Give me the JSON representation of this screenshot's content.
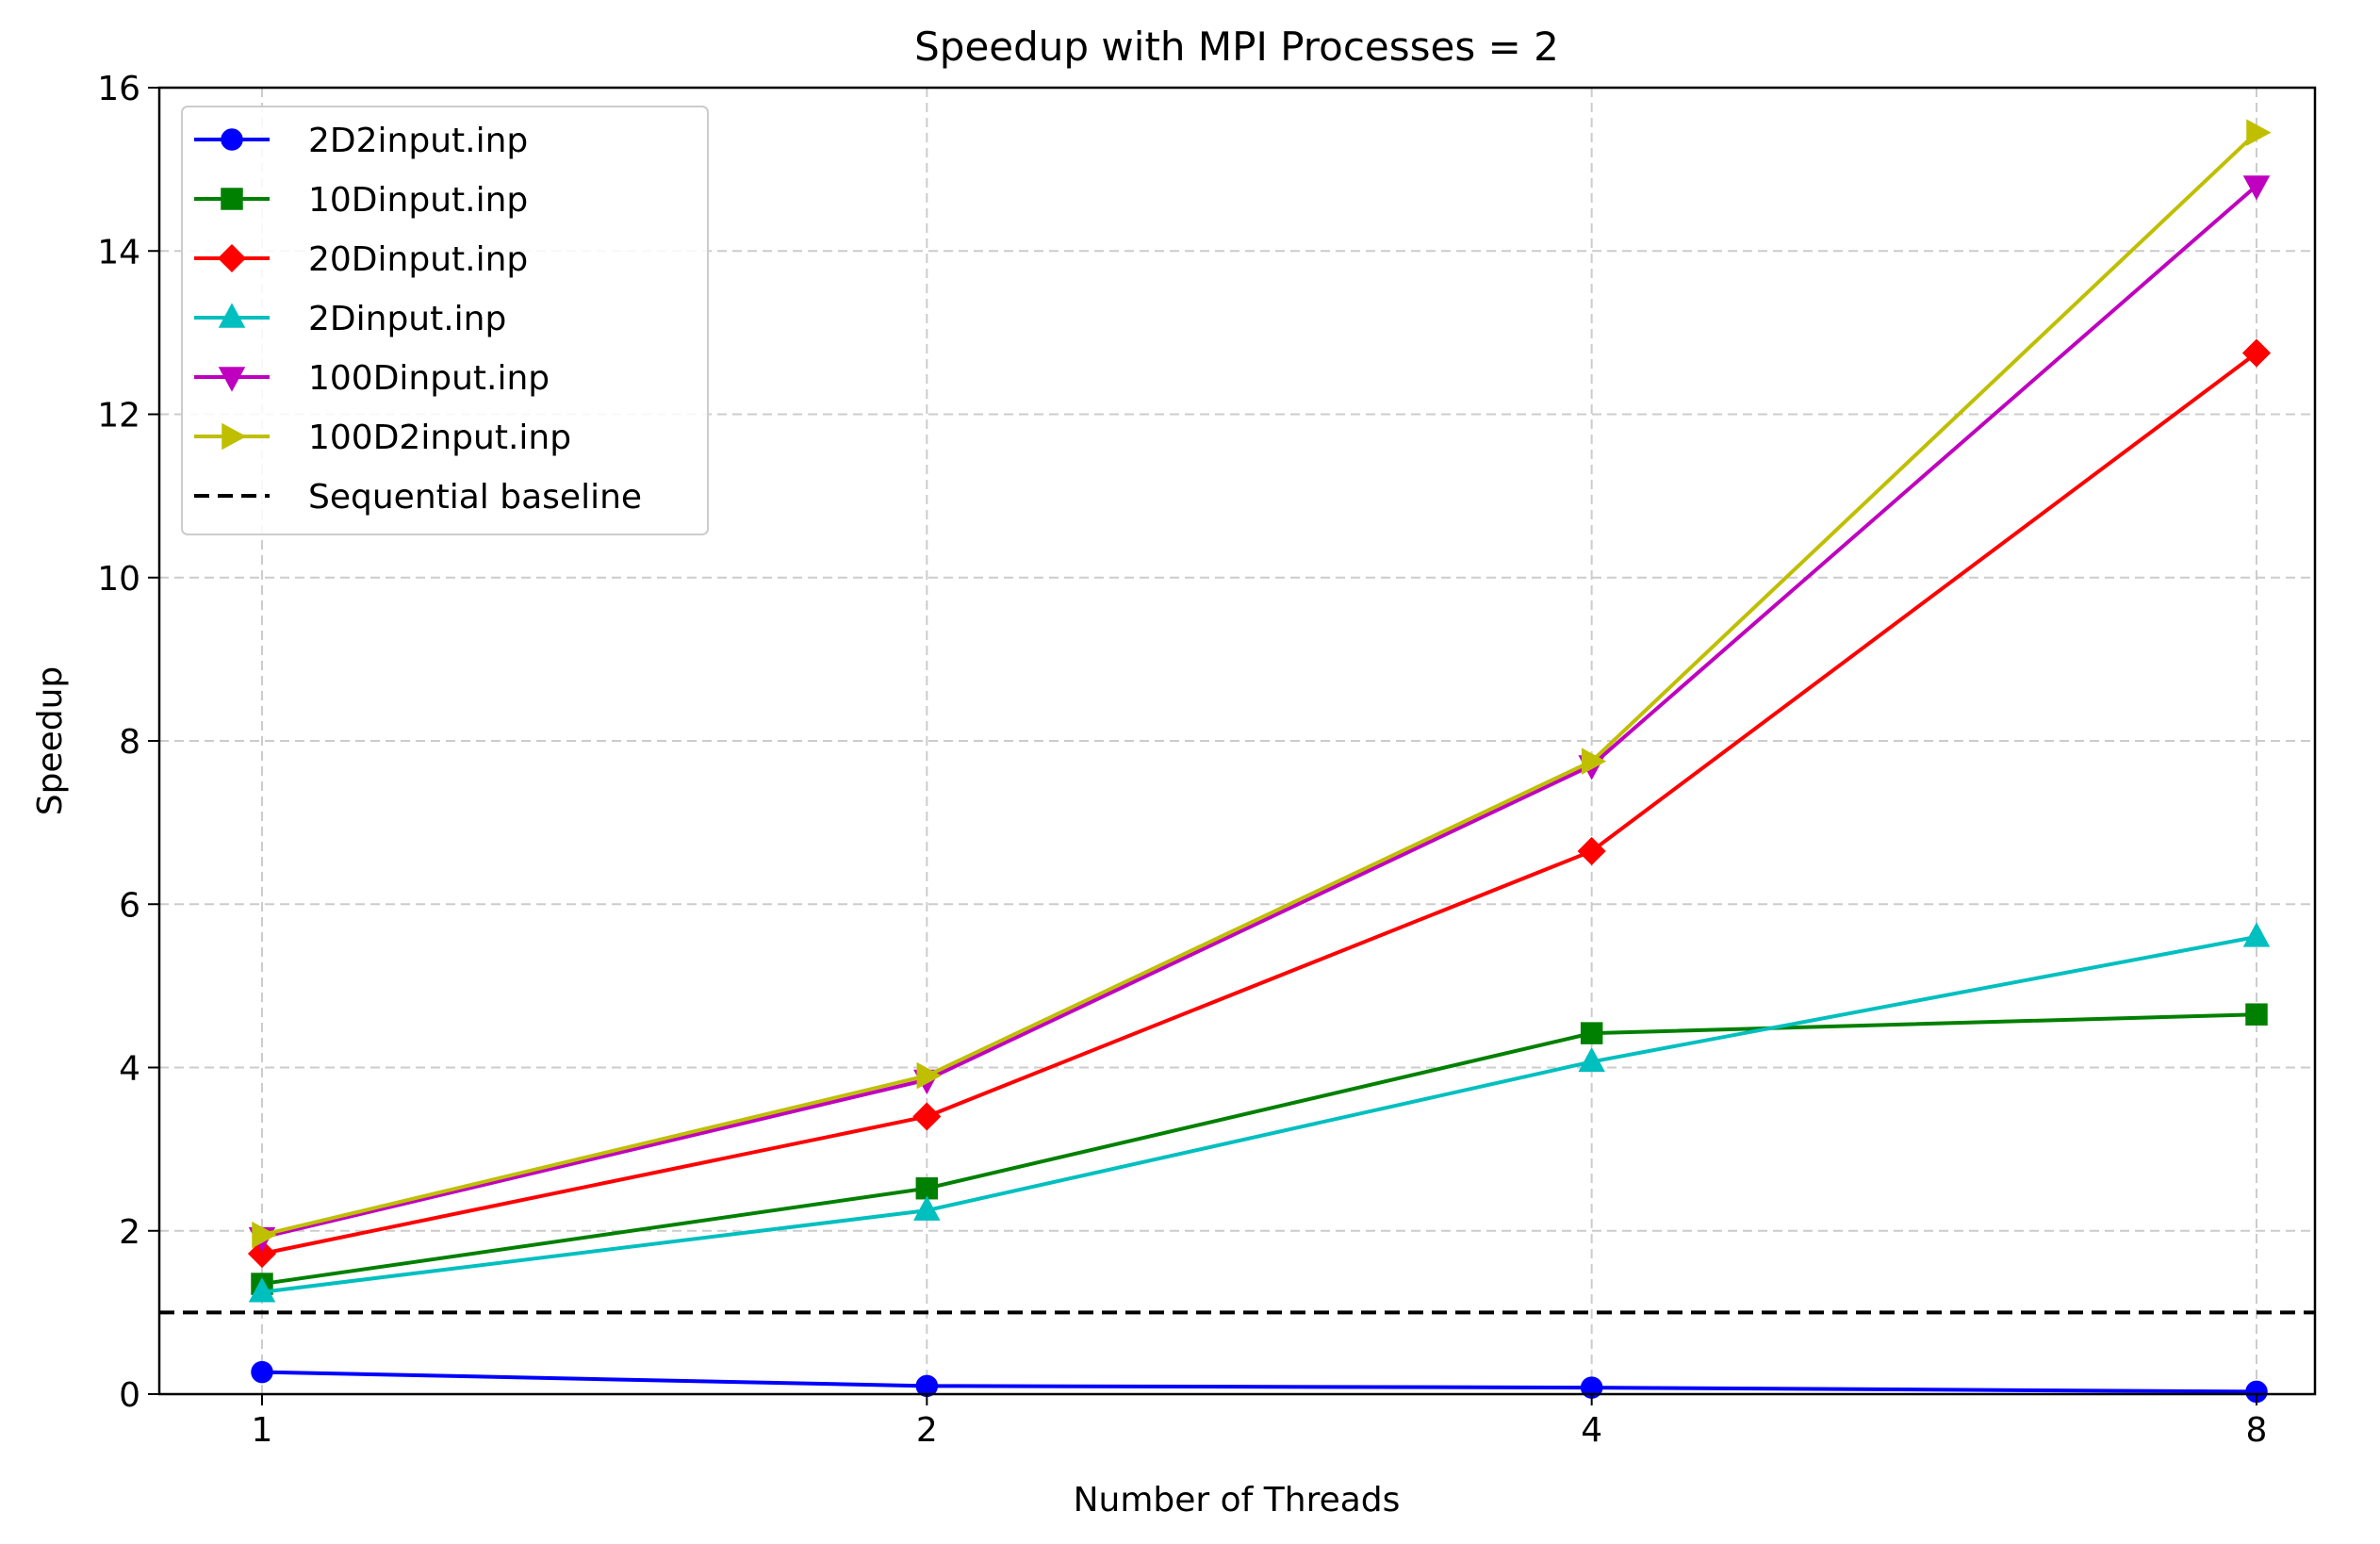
{
  "chart_data": {
    "type": "line",
    "title": "Speedup with MPI Processes = 2",
    "xlabel": "Number of Threads",
    "ylabel": "Speedup",
    "x": [
      1,
      2,
      4,
      8
    ],
    "x_tick_labels": [
      "1",
      "2",
      "4",
      "8"
    ],
    "y_ticks": [
      0,
      2,
      4,
      6,
      8,
      10,
      12,
      14,
      16
    ],
    "y_tick_labels": [
      "0",
      "2",
      "4",
      "6",
      "8",
      "10",
      "12",
      "14",
      "16"
    ],
    "ylim": [
      0,
      16
    ],
    "x_scale": "log2",
    "grid": true,
    "legend_position": "upper-left",
    "series": [
      {
        "name": "2D2input.inp",
        "values": [
          0.27,
          0.1,
          0.08,
          0.03
        ],
        "color": "#0000ff",
        "marker": "circle"
      },
      {
        "name": "10Dinput.inp",
        "values": [
          1.35,
          2.52,
          4.42,
          4.65
        ],
        "color": "#008000",
        "marker": "square"
      },
      {
        "name": "20Dinput.inp",
        "values": [
          1.72,
          3.4,
          6.65,
          12.75
        ],
        "color": "#ff0000",
        "marker": "diamond"
      },
      {
        "name": "2Dinput.inp",
        "values": [
          1.25,
          2.25,
          4.07,
          5.6
        ],
        "color": "#00bfbf",
        "marker": "triangle-up"
      },
      {
        "name": "100Dinput.inp",
        "values": [
          1.92,
          3.85,
          7.7,
          14.8
        ],
        "color": "#bf00bf",
        "marker": "triangle-down"
      },
      {
        "name": "100D2input.inp",
        "values": [
          1.95,
          3.9,
          7.75,
          15.45
        ],
        "color": "#bfbf00",
        "marker": "triangle-right"
      }
    ],
    "reference_line": {
      "name": "Sequential baseline",
      "y": 1.0,
      "color": "#000000",
      "style": "dashed"
    }
  }
}
